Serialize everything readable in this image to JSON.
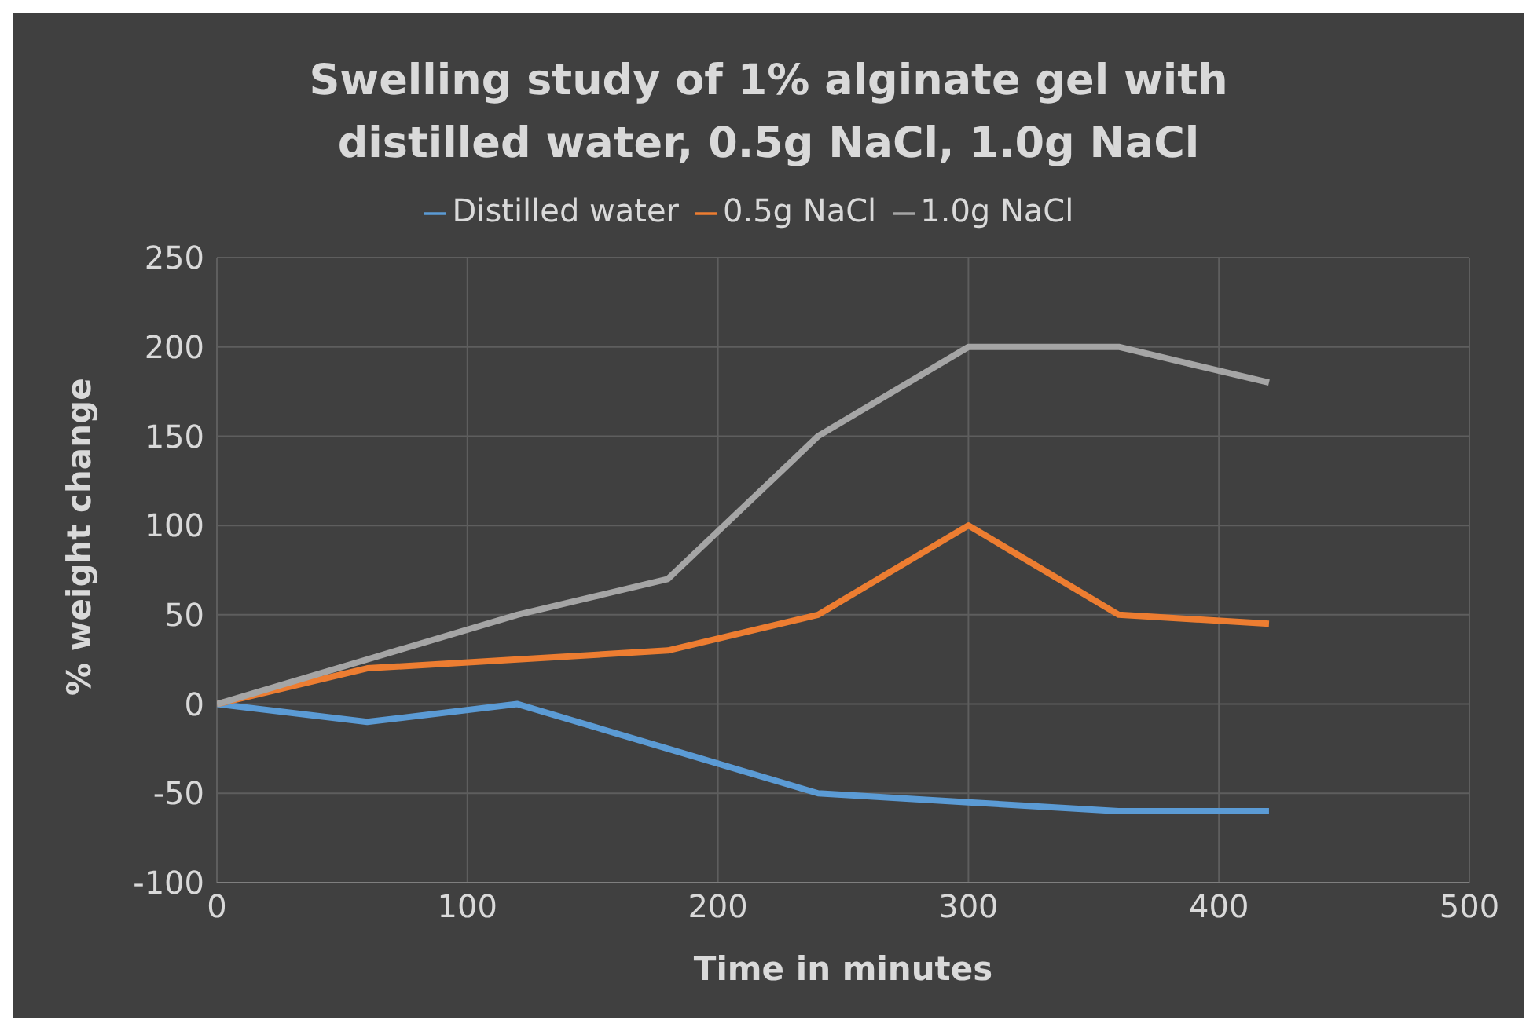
{
  "chart_data": {
    "type": "line",
    "title": "Swelling study of 1% alginate gel with distilled water, 0.5g NaCl, 1.0g NaCl",
    "xlabel": "Time in minutes",
    "ylabel": "% weight change",
    "x": [
      0,
      60,
      120,
      180,
      240,
      300,
      360,
      420
    ],
    "series": [
      {
        "name": "Distilled water",
        "color": "#5b9bd5",
        "values": [
          0,
          -10,
          0,
          -25,
          -50,
          -55,
          -60,
          -60
        ]
      },
      {
        "name": "0.5g NaCl",
        "color": "#ed7d31",
        "values": [
          0,
          20,
          25,
          30,
          50,
          100,
          50,
          45
        ]
      },
      {
        "name": "1.0g NaCl",
        "color": "#a5a5a5",
        "values": [
          0,
          25,
          50,
          70,
          150,
          200,
          200,
          180
        ]
      }
    ],
    "xlim": [
      0,
      500
    ],
    "xticks": [
      0,
      100,
      200,
      300,
      400,
      500
    ],
    "ylim": [
      -100,
      250
    ],
    "yticks": [
      -100,
      -50,
      0,
      50,
      100,
      150,
      200,
      250
    ],
    "grid": true,
    "legend": "top",
    "marker": "none",
    "line_style": "solid"
  }
}
